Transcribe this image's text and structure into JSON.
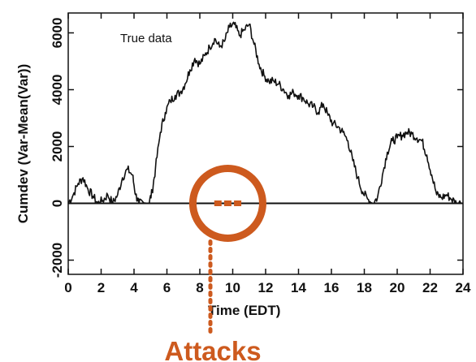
{
  "chart_data": {
    "type": "line",
    "xlabel": "Time (EDT)",
    "ylabel": "Cumdev (Var-Mean(Var))",
    "xlim": [
      0,
      24
    ],
    "ylim": [
      -2500,
      6700
    ],
    "x_ticks": [
      0,
      2,
      4,
      6,
      8,
      10,
      12,
      14,
      16,
      18,
      20,
      22,
      24
    ],
    "y_ticks": [
      -2000,
      0,
      2000,
      4000,
      6000
    ],
    "x_tick_labels": [
      "0",
      "2",
      "4",
      "6",
      "8",
      "10",
      "12",
      "14",
      "16",
      "18",
      "20",
      "22",
      "24"
    ],
    "y_tick_labels": [
      "-2000",
      "0",
      "2000",
      "4000",
      "6000"
    ],
    "zero_line": 0,
    "series": [
      {
        "name": "True data",
        "color": "#111111",
        "x": [
          0,
          0.3,
          0.6,
          0.9,
          1.2,
          1.5,
          1.8,
          2.1,
          2.4,
          2.7,
          3.0,
          3.3,
          3.6,
          3.9,
          4.1,
          4.3,
          4.6,
          4.9,
          5.1,
          5.3,
          5.6,
          5.9,
          6.2,
          6.5,
          6.8,
          7.1,
          7.4,
          7.7,
          8.0,
          8.3,
          8.6,
          8.9,
          9.2,
          9.5,
          9.8,
          10.1,
          10.4,
          10.7,
          11.0,
          11.3,
          11.6,
          11.9,
          12.2,
          12.5,
          12.8,
          13.1,
          13.4,
          13.7,
          14.0,
          14.3,
          14.6,
          14.9,
          15.2,
          15.5,
          15.8,
          16.1,
          16.4,
          16.7,
          17.0,
          17.3,
          17.6,
          17.9,
          18.2,
          18.5,
          18.8,
          19.1,
          19.4,
          19.7,
          20.0,
          20.3,
          20.6,
          20.9,
          21.2,
          21.5,
          21.8,
          22.1,
          22.4,
          22.7,
          23.0,
          23.3,
          23.6,
          24.0
        ],
        "y": [
          0,
          300,
          700,
          900,
          500,
          250,
          0,
          100,
          300,
          0,
          300,
          900,
          1200,
          1000,
          300,
          0,
          0,
          0,
          400,
          1200,
          2500,
          3200,
          3600,
          3800,
          3900,
          4200,
          4700,
          5100,
          4900,
          5200,
          5500,
          5800,
          5500,
          5700,
          6200,
          6300,
          5900,
          6100,
          6300,
          5600,
          4900,
          4500,
          4300,
          4300,
          4200,
          4000,
          3800,
          3900,
          3800,
          3700,
          3500,
          3400,
          3200,
          3500,
          3100,
          2800,
          2700,
          2500,
          2200,
          1500,
          900,
          400,
          150,
          0,
          200,
          1000,
          1800,
          2200,
          2300,
          2400,
          2500,
          2450,
          2300,
          2200,
          1700,
          1000,
          300,
          200,
          300,
          150,
          0,
          0
        ]
      }
    ],
    "annotations": {
      "series_label": "True data",
      "attack_label": "Attacks",
      "attack_color": "#cd5a1e",
      "attack_points": [
        {
          "x": 9.1,
          "y": 0
        },
        {
          "x": 9.7,
          "y": 0
        },
        {
          "x": 10.3,
          "y": 0
        }
      ]
    },
    "grid": false
  }
}
